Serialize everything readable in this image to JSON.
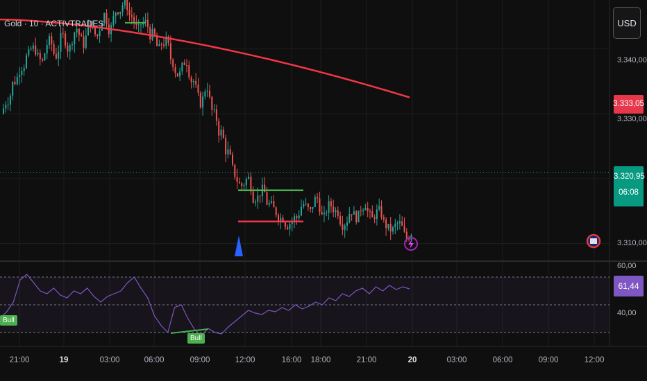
{
  "header": {
    "title": "Gold · 10 · ACTIVTRADES",
    "currency_button": "USD"
  },
  "price_axis": {
    "ticks": [
      "3.340,00",
      "3.330,00",
      "3.310,00"
    ]
  },
  "price_tags": {
    "ma_value": "3.333,05",
    "last_price": "3.320,95",
    "countdown": "06:08"
  },
  "rsi_axis": {
    "ticks": [
      "60,00",
      "40,00"
    ],
    "current": "61,44"
  },
  "rsi_labels": {
    "bull_1": "Bull",
    "bull_2": "Bull"
  },
  "time_axis": {
    "labels": [
      "21:00",
      "19",
      "03:00",
      "06:00",
      "09:00",
      "12:00",
      "16:00",
      "18:00",
      "21:00",
      "20",
      "03:00",
      "06:00",
      "09:00",
      "12:00"
    ],
    "bold": [
      false,
      true,
      false,
      false,
      false,
      false,
      false,
      false,
      false,
      true,
      false,
      false,
      false,
      false
    ]
  },
  "colors": {
    "up": "#26a69a",
    "down": "#ef5350",
    "ma": "#f23645",
    "rsi": "#7e57c2",
    "range_high": "#4caf50",
    "range_low": "#f23645",
    "marker": "#2962ff"
  },
  "chart_data": {
    "type": "candlestick",
    "ylim": [
      3307.5,
      3347.5
    ],
    "close_path": [
      3330,
      3332,
      3335,
      3337,
      3339,
      3340,
      3338,
      3341,
      3339,
      3342,
      3340,
      3343,
      3341,
      3344,
      3342,
      3345,
      3343,
      3346,
      3347,
      3345,
      3343,
      3344,
      3342,
      3340,
      3341,
      3338,
      3336,
      3338,
      3335,
      3332,
      3334,
      3330,
      3327,
      3324,
      3321,
      3319,
      3320,
      3317,
      3318,
      3316,
      3315,
      3314,
      3313,
      3314,
      3316,
      3315,
      3317,
      3314,
      3316,
      3315,
      3313,
      3315,
      3314,
      3316,
      3314,
      3315,
      3313,
      3312,
      3313,
      3311,
      3312,
      3311,
      3313,
      3314,
      3312,
      3314,
      3316,
      3318,
      3318,
      3320,
      3319,
      3321,
      3320
    ],
    "moving_average": {
      "start": 3344.5,
      "end": 3332.5
    },
    "range_box": {
      "high": 3318.2,
      "low": 3313.4
    },
    "rsi": {
      "ylim": [
        20,
        80
      ],
      "levels": [
        70,
        50,
        30
      ],
      "values": [
        40,
        45,
        52,
        68,
        72,
        66,
        60,
        58,
        62,
        57,
        55,
        60,
        58,
        62,
        56,
        52,
        56,
        58,
        60,
        66,
        70,
        62,
        55,
        42,
        35,
        30,
        48,
        50,
        40,
        32,
        28,
        33,
        30,
        29,
        34,
        38,
        42,
        46,
        44,
        43,
        46,
        45,
        48,
        46,
        50,
        47,
        49,
        52,
        50,
        55,
        53,
        58,
        56,
        60,
        62,
        58,
        63,
        60,
        64,
        61,
        63,
        61.44
      ]
    }
  }
}
